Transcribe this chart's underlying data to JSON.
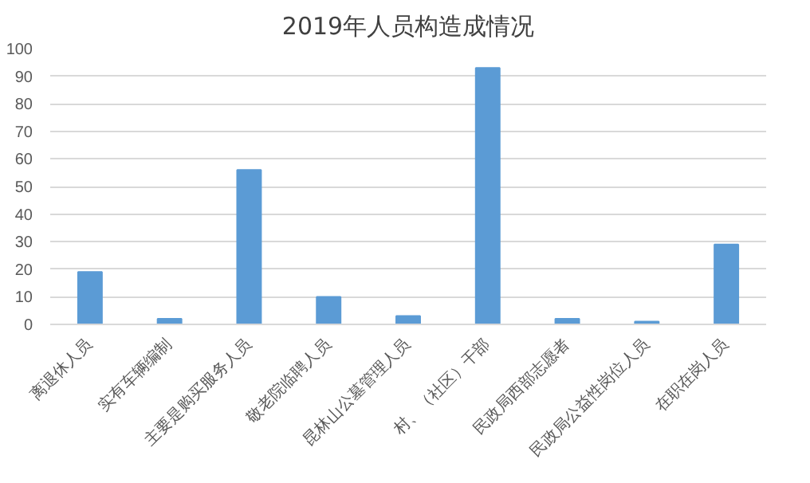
{
  "chart_data": {
    "type": "bar",
    "title": "2019年人员构造成情况",
    "categories": [
      "离退休人员",
      "实有车辆编制",
      "主要是购买服务人员",
      "敬老院临聘人员",
      "昆林山公墓管理人员",
      "村、（社区）干部",
      "民政局西部志愿者",
      "民政局公益性岗位人员",
      "在职在岗人员"
    ],
    "values": [
      19,
      2,
      56,
      10,
      3,
      93,
      2,
      1,
      29
    ],
    "color": "#5b9bd5",
    "ylim": [
      0,
      100
    ],
    "yticks": [
      0,
      10,
      20,
      30,
      40,
      50,
      60,
      70,
      80,
      90,
      100
    ],
    "grid": "y"
  }
}
